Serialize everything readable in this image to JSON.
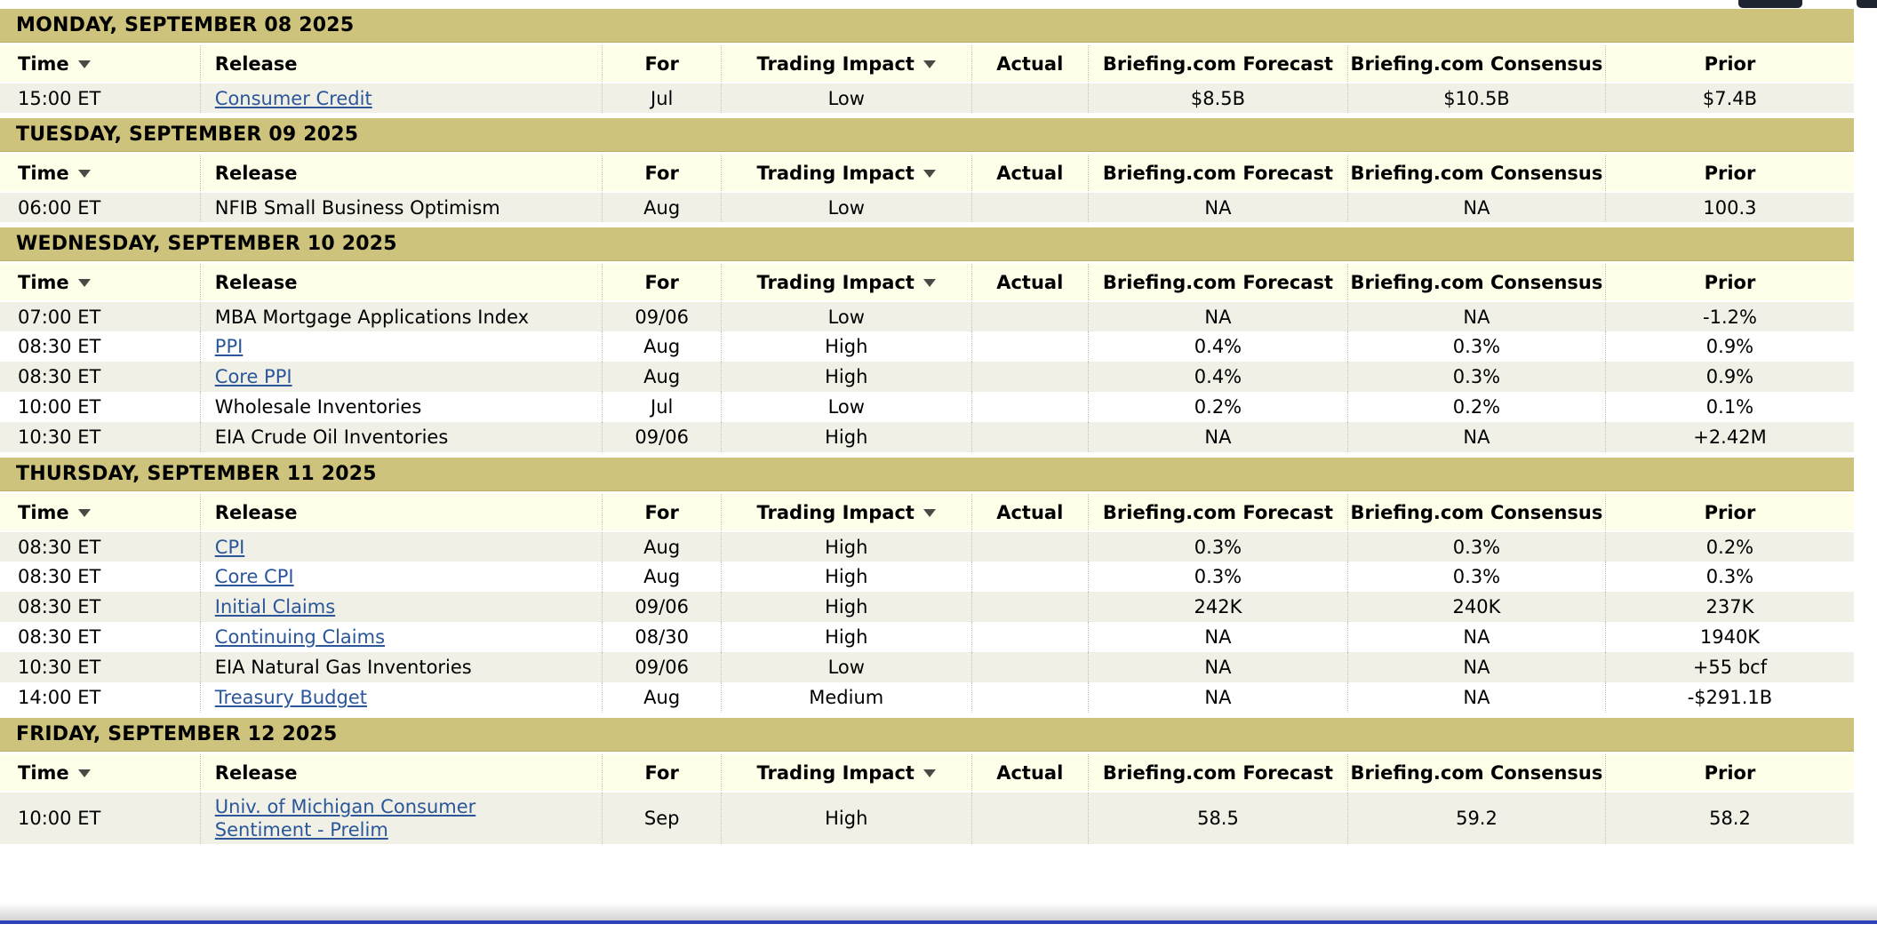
{
  "theme": {
    "day_bar_bg": "#cdc37c",
    "day_bar_edge": "#b9ae67",
    "header_bg": "#ffffe9",
    "row_alt_bg": "#f0f0e7",
    "row_bg": "#ffffff",
    "link_color": "#2b579a",
    "text_color": "#000000",
    "divider_color": "#c2c2b2",
    "bottom_line_color": "#2e41b6"
  },
  "columns": [
    {
      "key": "time",
      "label": "Time",
      "sortable": true
    },
    {
      "key": "release",
      "label": "Release",
      "sortable": false
    },
    {
      "key": "for",
      "label": "For",
      "sortable": false
    },
    {
      "key": "impact",
      "label": "Trading Impact",
      "sortable": true
    },
    {
      "key": "actual",
      "label": "Actual",
      "sortable": false
    },
    {
      "key": "forecast",
      "label": "Briefing.com Forecast",
      "sortable": false
    },
    {
      "key": "consensus",
      "label": "Briefing.com Consensus",
      "sortable": false
    },
    {
      "key": "prior",
      "label": "Prior",
      "sortable": false
    }
  ],
  "days": [
    {
      "title": "MONDAY, SEPTEMBER 08 2025",
      "rows": [
        {
          "time": "15:00 ET",
          "release": "Consumer Credit",
          "link": true,
          "for": "Jul",
          "impact": "Low",
          "actual": "",
          "forecast": "$8.5B",
          "consensus": "$10.5B",
          "prior": "$7.4B"
        }
      ]
    },
    {
      "title": "TUESDAY, SEPTEMBER 09 2025",
      "rows": [
        {
          "time": "06:00 ET",
          "release": "NFIB Small Business Optimism",
          "link": false,
          "for": "Aug",
          "impact": "Low",
          "actual": "",
          "forecast": "NA",
          "consensus": "NA",
          "prior": "100.3"
        }
      ]
    },
    {
      "title": "WEDNESDAY, SEPTEMBER 10 2025",
      "rows": [
        {
          "time": "07:00 ET",
          "release": "MBA Mortgage Applications Index",
          "link": false,
          "for": "09/06",
          "impact": "Low",
          "actual": "",
          "forecast": "NA",
          "consensus": "NA",
          "prior": "-1.2%"
        },
        {
          "time": "08:30 ET",
          "release": "PPI",
          "link": true,
          "for": "Aug",
          "impact": "High",
          "actual": "",
          "forecast": "0.4%",
          "consensus": "0.3%",
          "prior": "0.9%"
        },
        {
          "time": "08:30 ET",
          "release": "Core PPI",
          "link": true,
          "for": "Aug",
          "impact": "High",
          "actual": "",
          "forecast": "0.4%",
          "consensus": "0.3%",
          "prior": "0.9%"
        },
        {
          "time": "10:00 ET",
          "release": "Wholesale Inventories",
          "link": false,
          "for": "Jul",
          "impact": "Low",
          "actual": "",
          "forecast": "0.2%",
          "consensus": "0.2%",
          "prior": "0.1%"
        },
        {
          "time": "10:30 ET",
          "release": "EIA Crude Oil Inventories",
          "link": false,
          "for": "09/06",
          "impact": "High",
          "actual": "",
          "forecast": "NA",
          "consensus": "NA",
          "prior": "+2.42M"
        }
      ]
    },
    {
      "title": "THURSDAY, SEPTEMBER 11 2025",
      "rows": [
        {
          "time": "08:30 ET",
          "release": "CPI",
          "link": true,
          "for": "Aug",
          "impact": "High",
          "actual": "",
          "forecast": "0.3%",
          "consensus": "0.3%",
          "prior": "0.2%"
        },
        {
          "time": "08:30 ET",
          "release": "Core CPI",
          "link": true,
          "for": "Aug",
          "impact": "High",
          "actual": "",
          "forecast": "0.3%",
          "consensus": "0.3%",
          "prior": "0.3%"
        },
        {
          "time": "08:30 ET",
          "release": "Initial Claims",
          "link": true,
          "for": "09/06",
          "impact": "High",
          "actual": "",
          "forecast": "242K",
          "consensus": "240K",
          "prior": "237K"
        },
        {
          "time": "08:30 ET",
          "release": "Continuing Claims",
          "link": true,
          "for": "08/30",
          "impact": "High",
          "actual": "",
          "forecast": "NA",
          "consensus": "NA",
          "prior": "1940K"
        },
        {
          "time": "10:30 ET",
          "release": "EIA Natural Gas Inventories",
          "link": false,
          "for": "09/06",
          "impact": "Low",
          "actual": "",
          "forecast": "NA",
          "consensus": "NA",
          "prior": "+55 bcf"
        },
        {
          "time": "14:00 ET",
          "release": "Treasury Budget",
          "link": true,
          "for": "Aug",
          "impact": "Medium",
          "actual": "",
          "forecast": "NA",
          "consensus": "NA",
          "prior": "-$291.1B"
        }
      ]
    },
    {
      "title": "FRIDAY, SEPTEMBER 12 2025",
      "rows": [
        {
          "time": "10:00 ET",
          "release": "Univ. of Michigan Consumer Sentiment - Prelim",
          "link": true,
          "for": "Sep",
          "impact": "High",
          "actual": "",
          "forecast": "58.5",
          "consensus": "59.2",
          "prior": "58.2"
        }
      ]
    }
  ]
}
